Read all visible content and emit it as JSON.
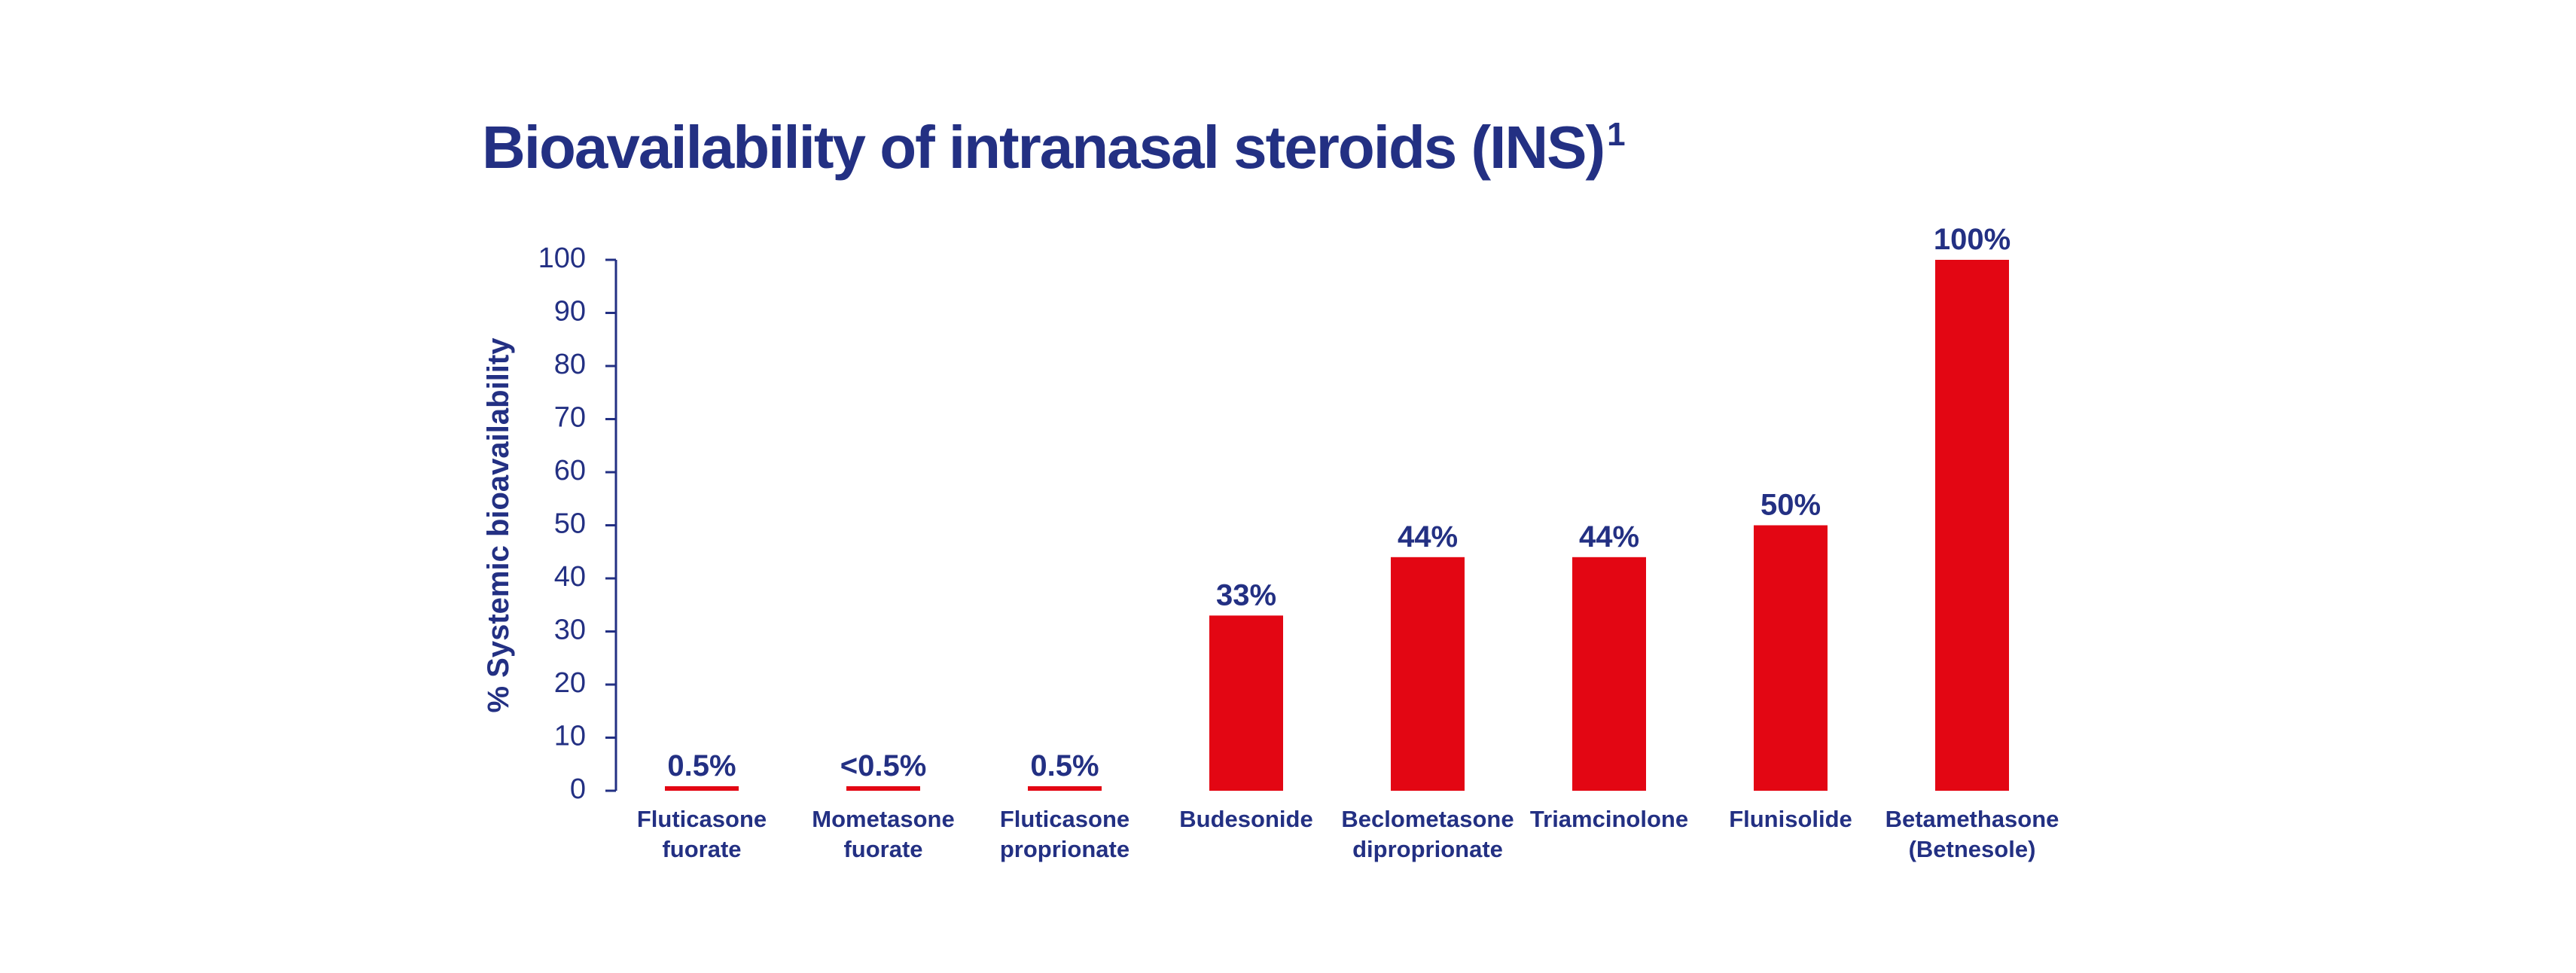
{
  "colors": {
    "text": "#233083",
    "bar": "#E30613",
    "axis": "#233083"
  },
  "chart_data": {
    "type": "bar",
    "title": "Bioavailability of intranasal steroids (INS)",
    "title_superscript": "1",
    "xlabel": "",
    "ylabel": "% Systemic bioavailability",
    "ylim": [
      0,
      100
    ],
    "yticks": [
      0,
      10,
      20,
      30,
      40,
      50,
      60,
      70,
      80,
      90,
      100
    ],
    "grid": false,
    "legend": "none",
    "categories": [
      [
        "Fluticasone",
        "fuorate"
      ],
      [
        "Mometasone",
        "fuorate"
      ],
      [
        "Fluticasone",
        "proprionate"
      ],
      [
        "Budesonide"
      ],
      [
        "Beclometasone",
        "diproprionate"
      ],
      [
        "Triamcinolone"
      ],
      [
        "Flunisolide"
      ],
      [
        "Betamethasone",
        "(Betnesole)"
      ]
    ],
    "values": [
      0.5,
      0.5,
      0.5,
      33,
      44,
      44,
      50,
      100
    ],
    "data_labels": [
      "0.5%",
      "<0.5%",
      "0.5%",
      "33%",
      "44%",
      "44%",
      "50%",
      "100%"
    ]
  }
}
